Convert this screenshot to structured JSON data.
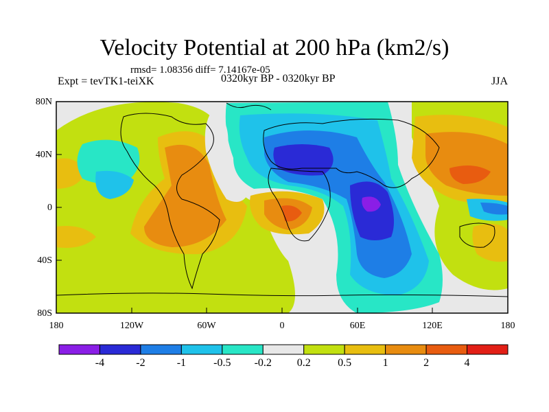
{
  "title": "Velocity Potential at 200 hPa (km2/s)",
  "stats": "rmsd= 1.08356 diff= 7.14167e-05",
  "experiment": "Expt = tevTK1-teiXK",
  "period": "0320kyr BP - 0320kyr BP",
  "season": "JJA",
  "map": {
    "lat_labels": [
      "80N",
      "40N",
      "0",
      "40S",
      "80S"
    ],
    "lon_labels": [
      "180",
      "120W",
      "60W",
      "0",
      "60E",
      "120E",
      "180"
    ]
  },
  "colorbar": {
    "colors": [
      "#8a1ee6",
      "#2a2ad6",
      "#1e7ee6",
      "#1fc2ea",
      "#28e6c6",
      "#e8e8e8",
      "#c2e010",
      "#e8be10",
      "#e88c10",
      "#e85c10",
      "#e21f16"
    ],
    "labels": [
      "-4",
      "-2",
      "-1",
      "-0.5",
      "-0.2",
      "0.2",
      "0.5",
      "1",
      "2",
      "4"
    ]
  }
}
